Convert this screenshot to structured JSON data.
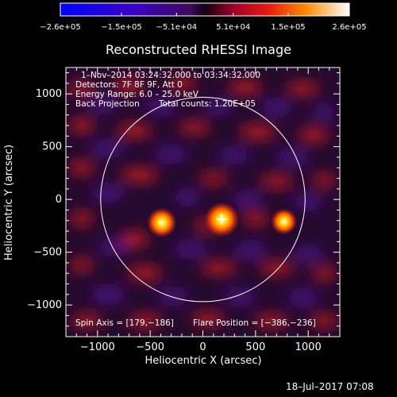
{
  "chart_data": {
    "type": "heatmap",
    "title": "Reconstructed RHESSI Image",
    "xlabel": "Heliocentric X (arcsec)",
    "ylabel": "Heliocentric Y (arcsec)",
    "xlim": [
      -1300,
      1300
    ],
    "ylim": [
      -1300,
      1250
    ],
    "xticks": [
      -1000,
      -500,
      0,
      500,
      1000
    ],
    "yticks": [
      -1000,
      -500,
      0,
      500,
      1000
    ],
    "xtick_labels": [
      "−1000",
      "−500",
      "0",
      "500",
      "1000"
    ],
    "ytick_labels": [
      "−1000",
      "−500",
      "0",
      "500",
      "1000"
    ],
    "colorbar": {
      "range": [
        -260000,
        260000
      ],
      "ticks": [
        -260000,
        -150000,
        -51000,
        51000,
        150000,
        260000
      ],
      "tick_labels": [
        "−2.6e+05",
        "−1.5e+05",
        "−5.1e+04",
        "5.1e+04",
        "1.5e+05",
        "2.6e+05"
      ]
    },
    "annotations": [
      "1–Nov–2014 03:24:32.000 to 03:34:32.000",
      "Detectors: 7F 8F 9F, Att 0",
      "Energy Range: 6.0 – 25.0 keV",
      "Back Projection",
      "Total counts: 1.20E+05",
      "Spin Axis = [179,−186]",
      "Flare Position = [−386,−236]"
    ],
    "solar_disk": {
      "center": [
        0,
        0
      ],
      "radius_arcsec": 970
    },
    "marker": {
      "position": [
        179,
        -186
      ]
    },
    "bright_sources": [
      {
        "x": 180,
        "y": -190,
        "value": 260000
      },
      {
        "x": -390,
        "y": -220,
        "value": 200000
      },
      {
        "x": 770,
        "y": -210,
        "value": 160000
      }
    ]
  },
  "footer": {
    "timestamp": "18–Jul–2017 07:08"
  }
}
